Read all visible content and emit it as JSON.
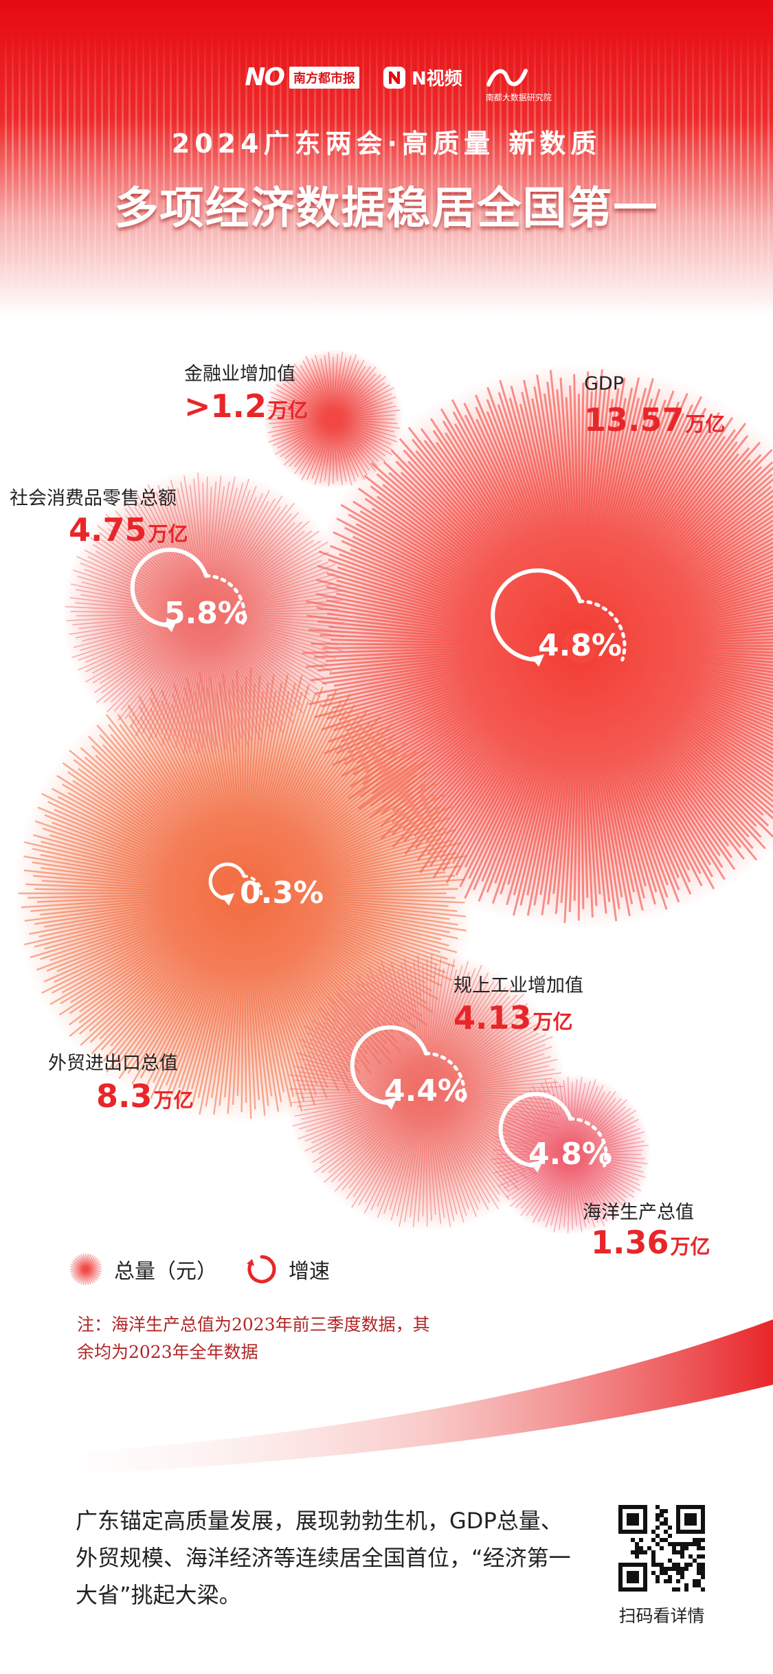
{
  "header": {
    "logo_nandu_box": "南方都市报",
    "logo_nvideo": "N视频",
    "logo_institute": "南都大数据研究院",
    "title_line1": "2024广东两会·高质量 新数质",
    "title_line2": "多项经济数据稳居全国第一"
  },
  "chart_data": {
    "type": "bubble",
    "series": [
      {
        "name": "金融业增加值",
        "total_display": ">1.2",
        "unit": "万亿",
        "total": 1.2,
        "growth_display": "",
        "growth": null,
        "color": "#f0403c"
      },
      {
        "name": "GDP",
        "total_display": "13.57",
        "unit": "万亿",
        "total": 13.57,
        "growth_display": "4.8%",
        "growth": 4.8,
        "color": "#f23b32"
      },
      {
        "name": "社会消费品零售总额",
        "total_display": "4.75",
        "unit": "万亿",
        "total": 4.75,
        "growth_display": "5.8%",
        "growth": 5.8,
        "color": "#ee6a66"
      },
      {
        "name": "外贸进出口总值",
        "total_display": "8.3",
        "unit": "万亿",
        "total": 8.3,
        "growth_display": "0.3%",
        "growth": 0.3,
        "color": "#f26a3e"
      },
      {
        "name": "规上工业增加值",
        "total_display": "4.13",
        "unit": "万亿",
        "total": 4.13,
        "growth_display": "4.4%",
        "growth": 4.4,
        "color": "#ef6a63"
      },
      {
        "name": "海洋生产总值",
        "total_display": "1.36",
        "unit": "万亿",
        "total": 1.36,
        "growth_display": "4.8%",
        "growth": 4.8,
        "color": "#ee5a6a"
      }
    ],
    "legend": {
      "total_label": "总量（元）",
      "growth_label": "增速",
      "placement": "bottom-left"
    }
  },
  "note": "注：海洋生产总值为2023年前三季度数据，其余均为2023年全年数据",
  "footer": {
    "text": "广东锚定高质量发展，展现勃勃生机，GDP总量、外贸规模、海洋经济等连续居全国首位，“经济第一大省”挑起大梁。",
    "qr_label": "扫码看详情"
  },
  "colors": {
    "brand_red": "#e60a12",
    "value_red": "#e8262a",
    "note_red": "#b22425"
  }
}
